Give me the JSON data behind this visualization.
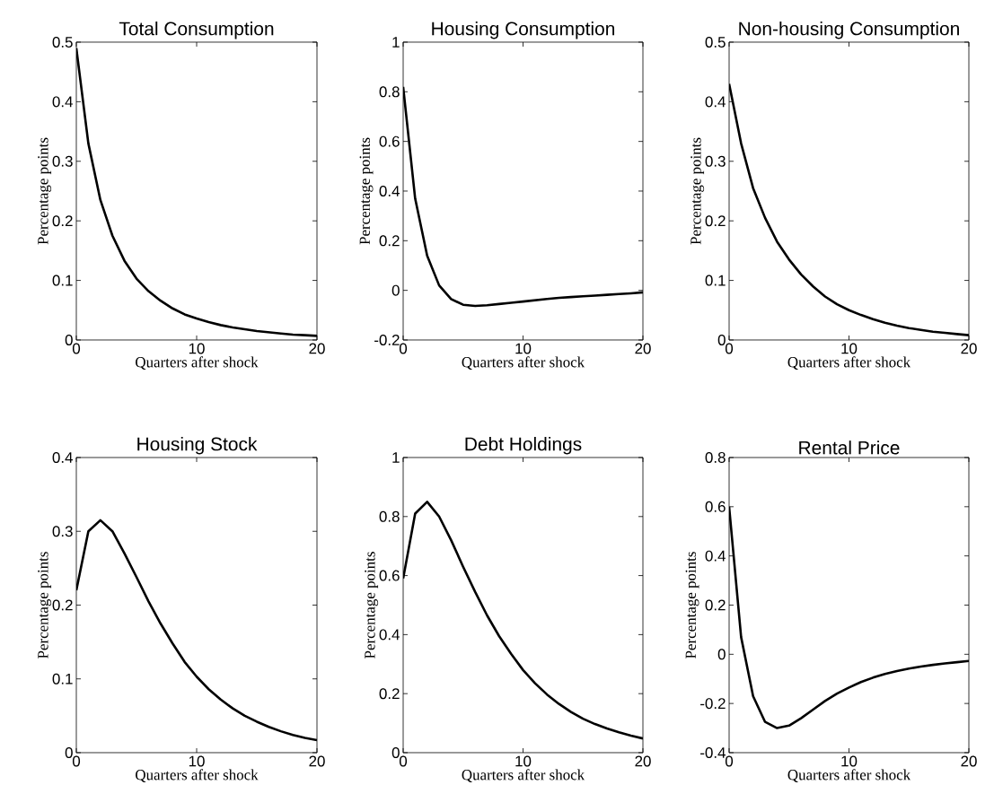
{
  "chart_data": [
    {
      "type": "line",
      "title": "Total Consumption",
      "xlabel": "Quarters after shock",
      "ylabel": "Percentage points",
      "color": "#000000",
      "xlim": [
        0,
        20
      ],
      "xticks": [
        0,
        10,
        20
      ],
      "ylim": [
        0,
        0.5
      ],
      "yticks": [
        0,
        0.1,
        0.2,
        0.3,
        0.4,
        0.5
      ],
      "x": [
        0,
        1,
        2,
        3,
        4,
        5,
        6,
        7,
        8,
        9,
        10,
        11,
        12,
        13,
        14,
        15,
        16,
        17,
        18,
        19,
        20
      ],
      "values": [
        0.49,
        0.33,
        0.235,
        0.175,
        0.133,
        0.103,
        0.082,
        0.066,
        0.053,
        0.043,
        0.036,
        0.03,
        0.025,
        0.021,
        0.018,
        0.015,
        0.013,
        0.011,
        0.009,
        0.008,
        0.007
      ]
    },
    {
      "type": "line",
      "title": "Housing Consumption",
      "xlabel": "Quarters after shock",
      "ylabel": "Percentage points",
      "color": "#000000",
      "xlim": [
        0,
        20
      ],
      "xticks": [
        0,
        10,
        20
      ],
      "ylim": [
        -0.2,
        1
      ],
      "yticks": [
        -0.2,
        0,
        0.2,
        0.4,
        0.6,
        0.8,
        1
      ],
      "x": [
        0,
        1,
        2,
        3,
        4,
        5,
        6,
        7,
        8,
        9,
        10,
        11,
        12,
        13,
        14,
        15,
        16,
        17,
        18,
        19,
        20
      ],
      "values": [
        0.82,
        0.37,
        0.14,
        0.02,
        -0.035,
        -0.058,
        -0.063,
        -0.06,
        -0.055,
        -0.05,
        -0.045,
        -0.04,
        -0.035,
        -0.03,
        -0.027,
        -0.024,
        -0.021,
        -0.018,
        -0.015,
        -0.012,
        -0.008
      ]
    },
    {
      "type": "line",
      "title": "Non-housing Consumption",
      "xlabel": "Quarters after shock",
      "ylabel": "Percentage points",
      "color": "#000000",
      "xlim": [
        0,
        20
      ],
      "xticks": [
        0,
        10,
        20
      ],
      "ylim": [
        0,
        0.5
      ],
      "yticks": [
        0,
        0.1,
        0.2,
        0.3,
        0.4,
        0.5
      ],
      "x": [
        0,
        1,
        2,
        3,
        4,
        5,
        6,
        7,
        8,
        9,
        10,
        11,
        12,
        13,
        14,
        15,
        16,
        17,
        18,
        19,
        20
      ],
      "values": [
        0.43,
        0.33,
        0.255,
        0.205,
        0.165,
        0.135,
        0.11,
        0.09,
        0.073,
        0.06,
        0.05,
        0.042,
        0.035,
        0.029,
        0.024,
        0.02,
        0.017,
        0.014,
        0.012,
        0.01,
        0.008
      ]
    },
    {
      "type": "line",
      "title": "Housing Stock",
      "xlabel": "Quarters after shock",
      "ylabel": "Percentage points",
      "color": "#000000",
      "xlim": [
        0,
        20
      ],
      "xticks": [
        0,
        10,
        20
      ],
      "ylim": [
        0,
        0.4
      ],
      "yticks": [
        0,
        0.1,
        0.2,
        0.3,
        0.4
      ],
      "x": [
        0,
        1,
        2,
        3,
        4,
        5,
        6,
        7,
        8,
        9,
        10,
        11,
        12,
        13,
        14,
        15,
        16,
        17,
        18,
        19,
        20
      ],
      "values": [
        0.22,
        0.3,
        0.315,
        0.3,
        0.27,
        0.238,
        0.205,
        0.175,
        0.148,
        0.123,
        0.103,
        0.086,
        0.072,
        0.06,
        0.05,
        0.042,
        0.035,
        0.029,
        0.024,
        0.02,
        0.017
      ]
    },
    {
      "type": "line",
      "title": "Debt Holdings",
      "xlabel": "Quarters after shock",
      "ylabel": "Percentage points",
      "color": "#000000",
      "xlim": [
        0,
        20
      ],
      "xticks": [
        0,
        10,
        20
      ],
      "ylim": [
        0,
        1
      ],
      "yticks": [
        0,
        0.2,
        0.4,
        0.6,
        0.8,
        1
      ],
      "x": [
        0,
        1,
        2,
        3,
        4,
        5,
        6,
        7,
        8,
        9,
        10,
        11,
        12,
        13,
        14,
        15,
        16,
        17,
        18,
        19,
        20
      ],
      "values": [
        0.59,
        0.81,
        0.85,
        0.8,
        0.72,
        0.63,
        0.545,
        0.465,
        0.395,
        0.335,
        0.28,
        0.235,
        0.197,
        0.165,
        0.138,
        0.115,
        0.097,
        0.082,
        0.069,
        0.058,
        0.048
      ]
    },
    {
      "type": "line",
      "title": "Rental Price",
      "xlabel": "Quarters after shock",
      "ylabel": "Percentage points",
      "color": "#000000",
      "xlim": [
        0,
        20
      ],
      "xticks": [
        0,
        10,
        20
      ],
      "ylim": [
        -0.4,
        0.8
      ],
      "yticks": [
        -0.4,
        -0.2,
        0,
        0.2,
        0.4,
        0.6,
        0.8
      ],
      "x": [
        0,
        1,
        2,
        3,
        4,
        5,
        6,
        7,
        8,
        9,
        10,
        11,
        12,
        13,
        14,
        15,
        16,
        17,
        18,
        19,
        20
      ],
      "values": [
        0.6,
        0.07,
        -0.17,
        -0.275,
        -0.3,
        -0.29,
        -0.26,
        -0.225,
        -0.19,
        -0.16,
        -0.135,
        -0.113,
        -0.095,
        -0.08,
        -0.068,
        -0.058,
        -0.05,
        -0.043,
        -0.037,
        -0.032,
        -0.027
      ]
    }
  ]
}
